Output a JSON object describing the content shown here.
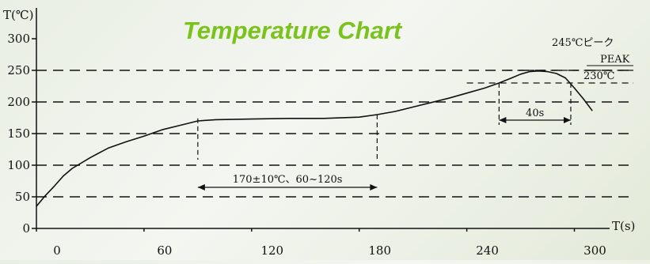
{
  "chart_data": {
    "type": "line",
    "title": "Temperature Chart",
    "xlabel": "T(s)",
    "ylabel": "T(℃)",
    "xlim": [
      0,
      310
    ],
    "ylim": [
      0,
      300
    ],
    "x_ticks": [
      0,
      60,
      120,
      180,
      240,
      300
    ],
    "y_ticks": [
      0,
      50,
      100,
      150,
      200,
      250,
      300
    ],
    "grid_y": [
      50,
      100,
      150,
      200,
      250
    ],
    "series": [
      {
        "x": [
          0,
          5,
          10,
          15,
          20,
          30,
          40,
          50,
          60,
          70,
          80,
          90,
          100,
          120,
          140,
          160,
          180,
          190,
          200,
          210,
          220,
          230,
          240,
          250,
          258,
          265,
          270,
          275,
          280,
          285,
          290,
          295,
          300,
          305,
          310
        ],
        "y": [
          35,
          52,
          67,
          83,
          95,
          112,
          127,
          137,
          146,
          156,
          163,
          170,
          172,
          173,
          174,
          174,
          176,
          180,
          185,
          192,
          199,
          206,
          214,
          222,
          230,
          238,
          244,
          248,
          249,
          248,
          245,
          238,
          222,
          205,
          186
        ]
      }
    ],
    "annotations": {
      "soak_label": "170±10℃、60~120s",
      "soak_range": [
        90,
        190
      ],
      "soak_level": 140,
      "reflow_label": "40s",
      "reflow_range": [
        258,
        298
      ],
      "reflow_level": 130,
      "reflow_line_temp": 230,
      "peak_label_jp": "245℃ピーク",
      "peak_label_en": "PEAK",
      "threshold_label": "230℃",
      "peak_line_temp": 250
    }
  }
}
